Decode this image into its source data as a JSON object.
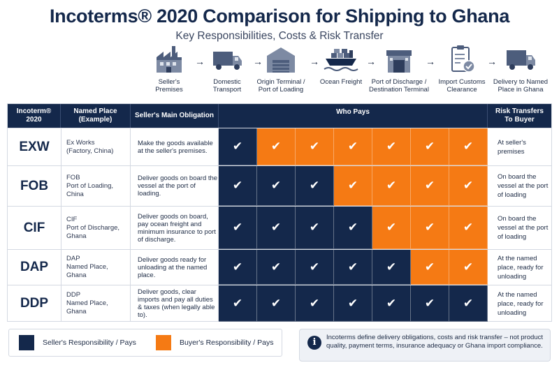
{
  "title": "Incoterms® 2020 Comparison for Shipping to Ghana",
  "subtitle": "Key Responsibilities, Costs & Risk Transfer",
  "stages": [
    {
      "icon": "factory-icon",
      "label": "Seller's\nPremises"
    },
    {
      "icon": "truck-icon",
      "label": "Domestic\nTransport"
    },
    {
      "icon": "warehouse-icon",
      "label": "Origin Terminal /\nPort of Loading"
    },
    {
      "icon": "ship-icon",
      "label": "Ocean Freight"
    },
    {
      "icon": "terminal-icon",
      "label": "Port of Discharge /\nDestination Terminal"
    },
    {
      "icon": "clipboard-check-icon",
      "label": "Import Customs\nClearance"
    },
    {
      "icon": "delivery-truck-icon",
      "label": "Delivery to Named\nPlace in Ghana"
    }
  ],
  "table": {
    "headers": {
      "incoterm": "Incoterm®\n2020",
      "place": "Named Place\n(Example)",
      "obligation": "Seller's Main Obligation",
      "who_pays": "Who Pays",
      "risk": "Risk Transfers\nTo Buyer"
    },
    "check_glyph": "✔",
    "rows": [
      {
        "code": "EXW",
        "place": [
          "Ex Works",
          "(Factory, China)"
        ],
        "obligation": "Make the goods available at the seller's premises.",
        "pays": [
          "S",
          "B",
          "B",
          "B",
          "B",
          "B",
          "B"
        ],
        "risk": "At seller's premises"
      },
      {
        "code": "FOB",
        "place": [
          "FOB",
          "Port of Loading,",
          "China"
        ],
        "obligation": "Deliver goods on board the vessel at the port of loading.",
        "pays": [
          "S",
          "S",
          "S",
          "B",
          "B",
          "B",
          "B"
        ],
        "risk": "On board the vessel at the port of loading"
      },
      {
        "code": "CIF",
        "place": [
          "CIF",
          "Port of Discharge,",
          "Ghana"
        ],
        "obligation": "Deliver goods on board, pay ocean freight and minimum insurance to port of discharge.",
        "pays": [
          "S",
          "S",
          "S",
          "S",
          "B",
          "B",
          "B"
        ],
        "risk": "On board the vessel at the port of loading"
      },
      {
        "code": "DAP",
        "place": [
          "DAP",
          "Named Place,",
          "Ghana"
        ],
        "obligation": "Deliver goods ready for unloading at the named place.",
        "pays": [
          "S",
          "S",
          "S",
          "S",
          "S",
          "B",
          "B"
        ],
        "risk": "At the named place, ready for unloading"
      },
      {
        "code": "DDP",
        "place": [
          "DDP",
          "Named Place,",
          "Ghana"
        ],
        "obligation": "Deliver goods, clear imports and pay all duties & taxes (when legally able to).",
        "pays": [
          "S",
          "S",
          "S",
          "S",
          "S",
          "S",
          "S"
        ],
        "risk": "At the named place, ready for unloading"
      }
    ]
  },
  "legend": {
    "seller": "Seller's Responsibility / Pays",
    "buyer": "Buyer's Responsibility / Pays",
    "seller_color": "#14284b",
    "buyer_color": "#f57a14"
  },
  "note": {
    "icon": "info-icon",
    "text": "Incoterms define delivery obligations, costs and risk transfer – not product quality, payment terms, insurance adequacy or Ghana import compliance."
  }
}
